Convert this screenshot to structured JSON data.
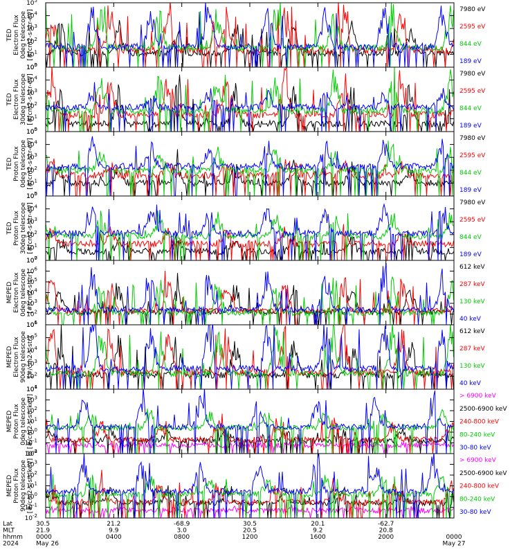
{
  "chart_data": {
    "type": "line",
    "xaxis": {
      "rows": [
        {
          "label": "Lat",
          "values": [
            "30.5",
            "21.2",
            "-68.9",
            "30.5",
            "20.1",
            "-62.7"
          ]
        },
        {
          "label": "MLT",
          "values": [
            "21.9",
            "9.9",
            "3.0",
            "20.5",
            "9.2",
            "20.8"
          ]
        },
        {
          "label": "hhmm",
          "values": [
            "0000",
            "0400",
            "0800",
            "1200",
            "1600",
            "2000",
            "0000"
          ]
        },
        {
          "label": "2024",
          "values": [
            "May 26",
            "",
            "",
            "",
            "",
            "",
            "May 27"
          ]
        }
      ]
    },
    "panels": [
      {
        "ylabel": [
          "TED",
          "Electron Flux",
          "0deg telescope",
          "[#/cm2-s-str-eV]"
        ],
        "ylim_exp": [
          0,
          5
        ],
        "series": [
          {
            "name": "7980 eV",
            "color": "#000000",
            "base": 1.1,
            "spike": 2.2
          },
          {
            "name": "2595 eV",
            "color": "#ff0000",
            "base": 1.3,
            "spike": 3.2
          },
          {
            "name": "844 eV",
            "color": "#00cc00",
            "base": 1.5,
            "spike": 3.0
          },
          {
            "name": "189 eV",
            "color": "#0000ff",
            "base": 1.6,
            "spike": 2.9
          }
        ]
      },
      {
        "ylabel": [
          "TED",
          "Electron Flux",
          "30deg telescope",
          "[#/cm2-s-str-eV]"
        ],
        "ylim_exp": [
          0,
          5
        ],
        "series": [
          {
            "name": "7980 eV",
            "color": "#000000",
            "base": 0.6,
            "spike": 2.6
          },
          {
            "name": "2595 eV",
            "color": "#ff0000",
            "base": 1.3,
            "spike": 3.3
          },
          {
            "name": "844 eV",
            "color": "#00cc00",
            "base": 1.6,
            "spike": 2.6
          },
          {
            "name": "189 eV",
            "color": "#0000ff",
            "base": 1.9,
            "spike": 1.2
          }
        ]
      },
      {
        "ylabel": [
          "TED",
          "Proton Flux",
          "0deg telescope",
          "[#/cm2-s-str-eV]"
        ],
        "ylim_exp": [
          0,
          5
        ],
        "series": [
          {
            "name": "7980 eV",
            "color": "#000000",
            "base": 1.0,
            "spike": 1.4
          },
          {
            "name": "2595 eV",
            "color": "#ff0000",
            "base": 1.6,
            "spike": 1.0
          },
          {
            "name": "844 eV",
            "color": "#00cc00",
            "base": 2.0,
            "spike": 1.6
          },
          {
            "name": "189 eV",
            "color": "#0000ff",
            "base": 2.3,
            "spike": 1.8
          }
        ]
      },
      {
        "ylabel": [
          "TED",
          "Proton Flux",
          "30deg telescope",
          "[#/cm2-s-str-eV]"
        ],
        "ylim_exp": [
          0,
          5
        ],
        "series": [
          {
            "name": "7980 eV",
            "color": "#000000",
            "base": 0.7,
            "spike": 1.0
          },
          {
            "name": "2595 eV",
            "color": "#ff0000",
            "base": 1.3,
            "spike": 1.0
          },
          {
            "name": "844 eV",
            "color": "#00cc00",
            "base": 1.9,
            "spike": 1.6
          },
          {
            "name": "189 eV",
            "color": "#0000ff",
            "base": 2.1,
            "spike": 1.9
          }
        ]
      },
      {
        "ylabel": [
          "MEPED",
          "Electron Flux",
          "0deg telescope",
          "[#/cm2-s-str]"
        ],
        "ylim_exp": [
          1,
          7
        ],
        "series": [
          {
            "name": "612 keV",
            "color": "#000000",
            "base": 2.2,
            "spike": 2.2
          },
          {
            "name": "287 keV",
            "color": "#ff0000",
            "base": 2.3,
            "spike": 2.8
          },
          {
            "name": "130 keV",
            "color": "#00cc00",
            "base": 2.1,
            "spike": 2.9
          },
          {
            "name": "40 keV",
            "color": "#0000ff",
            "base": 2.4,
            "spike": 3.4
          }
        ]
      },
      {
        "ylabel": [
          "MEPED",
          "Electron Flux",
          "90deg telescope",
          "[#/cm2-s-str]"
        ],
        "ylim_exp": [
          1,
          6
        ],
        "series": [
          {
            "name": "612 keV",
            "color": "#000000",
            "base": 2.1,
            "spike": 2.6
          },
          {
            "name": "287 keV",
            "color": "#ff0000",
            "base": 2.3,
            "spike": 3.2
          },
          {
            "name": "130 keV",
            "color": "#00cc00",
            "base": 2.2,
            "spike": 3.3
          },
          {
            "name": "40 keV",
            "color": "#0000ff",
            "base": 2.6,
            "spike": 3.4
          }
        ]
      },
      {
        "ylabel": [
          "MEPED",
          "Proton Flux",
          "0deg telescope",
          "[#/cm2-s-str-keV]"
        ],
        "ylim_exp": [
          -2,
          4
        ],
        "series": [
          {
            "name": "> 6900 keV",
            "color": "#ff00ff",
            "base": -1.2,
            "spike": 0.0
          },
          {
            "name": "2500-6900 keV",
            "color": "#000000",
            "base": -0.8,
            "spike": 1.0
          },
          {
            "name": "240-800 keV",
            "color": "#ff0000",
            "base": -0.7,
            "spike": 1.6
          },
          {
            "name": "80-240 keV",
            "color": "#00cc00",
            "base": 0.4,
            "spike": 1.4
          },
          {
            "name": "30-80 keV",
            "color": "#0000ff",
            "base": 0.5,
            "spike": 2.6
          }
        ]
      },
      {
        "ylabel": [
          "MEPED",
          "Proton Flux",
          "90deg telescope",
          "[#/cm2-s-str-keV]"
        ],
        "ylim_exp": [
          -2,
          4
        ],
        "series": [
          {
            "name": "> 6900 keV",
            "color": "#ff00ff",
            "base": -1.3,
            "spike": 0.2
          },
          {
            "name": "2500-6900 keV",
            "color": "#000000",
            "base": -0.6,
            "spike": 1.3
          },
          {
            "name": "240-800 keV",
            "color": "#ff0000",
            "base": -0.5,
            "spike": 1.6
          },
          {
            "name": "80-240 keV",
            "color": "#00cc00",
            "base": 0.2,
            "spike": 1.7
          },
          {
            "name": "30-80 keV",
            "color": "#0000ff",
            "base": 0.5,
            "spike": 2.8
          }
        ]
      }
    ]
  }
}
